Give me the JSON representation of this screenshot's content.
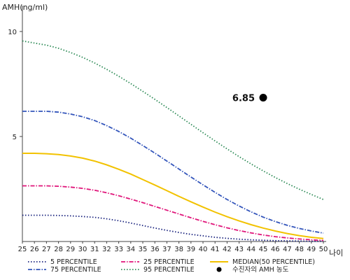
{
  "chart_data": {
    "type": "line",
    "ylabel": "AMH(ng/ml)",
    "xlabel": "나이",
    "x": [
      25,
      26,
      27,
      28,
      29,
      30,
      31,
      32,
      33,
      34,
      35,
      36,
      37,
      38,
      39,
      40,
      41,
      42,
      43,
      44,
      45,
      46,
      47,
      48,
      49,
      50
    ],
    "xlim": [
      25,
      50
    ],
    "ylim": [
      0,
      10.5
    ],
    "yticks": [
      5,
      10
    ],
    "grid": false,
    "legend_position": "bottom",
    "series": [
      {
        "name": "5 PERCENTILE",
        "color": "#1a237e",
        "dash": "dotted",
        "values": [
          1.25,
          1.25,
          1.25,
          1.24,
          1.22,
          1.19,
          1.15,
          1.08,
          0.99,
          0.88,
          0.76,
          0.64,
          0.53,
          0.43,
          0.34,
          0.27,
          0.2,
          0.15,
          0.11,
          0.08,
          0.06,
          0.04,
          0.03,
          0.02,
          0.01,
          0.01
        ]
      },
      {
        "name": "25 PERCENTILE",
        "color": "#e0157a",
        "dash": "dashdot",
        "values": [
          2.65,
          2.65,
          2.65,
          2.63,
          2.59,
          2.53,
          2.44,
          2.32,
          2.18,
          2.02,
          1.85,
          1.67,
          1.49,
          1.31,
          1.13,
          0.96,
          0.8,
          0.65,
          0.52,
          0.41,
          0.31,
          0.23,
          0.17,
          0.12,
          0.08,
          0.05
        ]
      },
      {
        "name": "MEDIAN(50 PERCENTILE)",
        "color": "#f2c200",
        "dash": "solid",
        "values": [
          4.2,
          4.2,
          4.18,
          4.14,
          4.07,
          3.97,
          3.83,
          3.65,
          3.44,
          3.21,
          2.95,
          2.69,
          2.42,
          2.15,
          1.89,
          1.64,
          1.4,
          1.18,
          0.98,
          0.8,
          0.64,
          0.5,
          0.38,
          0.28,
          0.2,
          0.14
        ]
      },
      {
        "name": "75 PERCENTILE",
        "color": "#3355bb",
        "dash": "dashdot",
        "values": [
          6.2,
          6.2,
          6.2,
          6.16,
          6.07,
          5.94,
          5.76,
          5.52,
          5.24,
          4.92,
          4.57,
          4.21,
          3.83,
          3.45,
          3.07,
          2.7,
          2.34,
          2.0,
          1.69,
          1.41,
          1.16,
          0.95,
          0.77,
          0.62,
          0.5,
          0.4
        ]
      },
      {
        "name": "95 PERCENTILE",
        "color": "#2e8b57",
        "dash": "dotted",
        "values": [
          9.55,
          9.45,
          9.35,
          9.2,
          9.0,
          8.77,
          8.5,
          8.2,
          7.87,
          7.52,
          7.15,
          6.77,
          6.38,
          5.98,
          5.58,
          5.18,
          4.79,
          4.41,
          4.04,
          3.69,
          3.36,
          3.05,
          2.76,
          2.49,
          2.24,
          2.0
        ]
      }
    ],
    "patient_point": {
      "name": "수진자의 AMH 농도",
      "x": 45,
      "y": 6.85,
      "label": "6.85",
      "color": "#000000"
    }
  }
}
